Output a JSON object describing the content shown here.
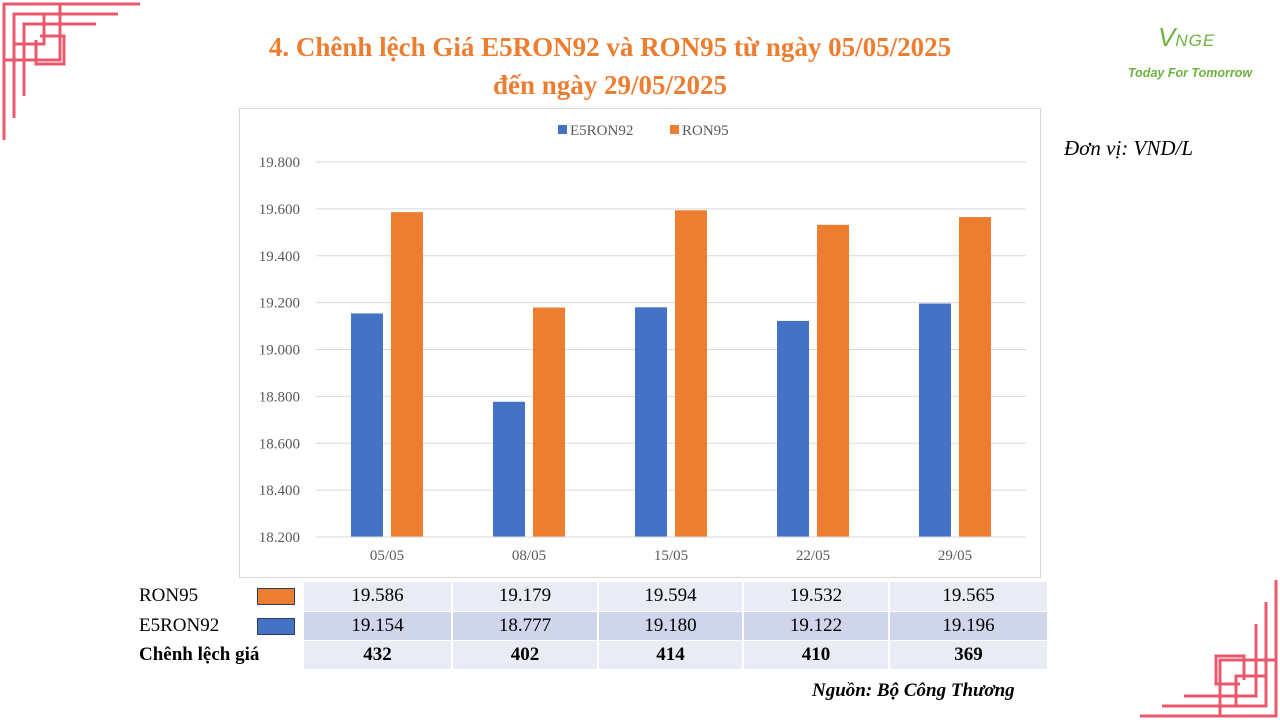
{
  "title_line1": "4. Chênh lệch Giá E5RON92 và RON95 từ ngày 05/05/2025",
  "title_line2": "đến ngày 29/05/2025",
  "logo": {
    "mark_v": "V",
    "mark_rest": "NGE",
    "tagline": "Today For Tomorrow"
  },
  "unit": "Đơn vị: VND/L",
  "source": "Nguồn: Bộ Công Thương",
  "colors": {
    "accent": "#ED7D31",
    "series_e5": "#4472C4",
    "series_ron95": "#ED7D31",
    "decor": "#E8596E",
    "logo": "#6DB33F"
  },
  "chart_data": {
    "type": "bar",
    "categories": [
      "05/05",
      "08/05",
      "15/05",
      "22/05",
      "29/05"
    ],
    "series": [
      {
        "name": "E5RON92",
        "color": "#4472C4",
        "values": [
          19154,
          18777,
          19180,
          19122,
          19196
        ]
      },
      {
        "name": "RON95",
        "color": "#ED7D31",
        "values": [
          19586,
          19179,
          19594,
          19532,
          19565
        ]
      }
    ],
    "ylim": [
      18200,
      19800
    ],
    "yticks": [
      18200,
      18400,
      18600,
      18800,
      19000,
      19200,
      19400,
      19600,
      19800
    ],
    "ytick_labels": [
      "18.200",
      "18.400",
      "18.600",
      "18.800",
      "19.000",
      "19.200",
      "19.400",
      "19.600",
      "19.800"
    ],
    "grid": true,
    "legend": "top-center"
  },
  "table": {
    "rows": [
      {
        "label": "RON95",
        "swatch": "#ED7D31",
        "values": [
          "19.586",
          "19.179",
          "19.594",
          "19.532",
          "19.565"
        ]
      },
      {
        "label": "E5RON92",
        "swatch": "#4472C4",
        "values": [
          "19.154",
          "18.777",
          "19.180",
          "19.122",
          "19.196"
        ]
      },
      {
        "label": "Chênh lệch giá",
        "values": [
          "432",
          "402",
          "414",
          "410",
          "369"
        ]
      }
    ]
  }
}
